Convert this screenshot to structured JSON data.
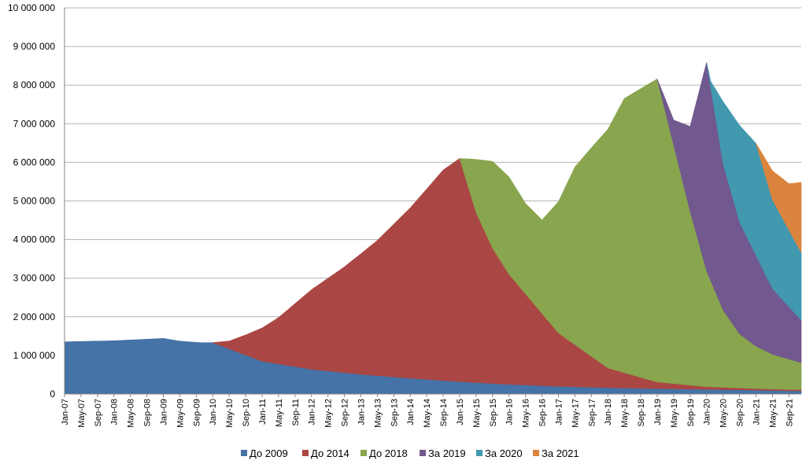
{
  "chart_data": {
    "type": "area",
    "stacked": true,
    "grid": "horizontal",
    "legend_position": "bottom",
    "ylim": [
      0,
      10000000
    ],
    "yticks": [
      0,
      1000000,
      2000000,
      3000000,
      4000000,
      5000000,
      6000000,
      7000000,
      8000000,
      9000000,
      10000000
    ],
    "ytick_labels": [
      "0",
      "1 000 000",
      "2 000 000",
      "3 000 000",
      "4 000 000",
      "5 000 000",
      "6 000 000",
      "7 000 000",
      "8 000 000",
      "9 000 000",
      "10 000 000"
    ],
    "x_range": [
      "2007-01",
      "2021-12"
    ],
    "xtick_labels": [
      "Jan-07",
      "May-07",
      "Sep-07",
      "Jan-08",
      "May-08",
      "Sep-08",
      "Jan-09",
      "May-09",
      "Sep-09",
      "Jan-10",
      "May-10",
      "Sep-10",
      "Jan-11",
      "May-11",
      "Sep-11",
      "Jan-12",
      "May-12",
      "Sep-12",
      "Jan-13",
      "May-13",
      "Sep-13",
      "Jan-14",
      "May-14",
      "Sep-14",
      "Jan-15",
      "May-15",
      "Sep-15",
      "Jan-16",
      "May-16",
      "Sep-16",
      "Jan-17",
      "May-17",
      "Sep-17",
      "Jan-18",
      "May-18",
      "Sep-18",
      "Jan-19",
      "May-19",
      "Sep-19",
      "Jan-20",
      "May-20",
      "Sep-20",
      "Jan-21",
      "May-21",
      "Sep-21"
    ],
    "series": [
      {
        "name": "До 2009",
        "color": "#4572A7",
        "points": [
          [
            "2007-01",
            1350000
          ],
          [
            "2008-01",
            1380000
          ],
          [
            "2009-01",
            1440000
          ],
          [
            "2009-05",
            1370000
          ],
          [
            "2009-10",
            1330000
          ],
          [
            "2010-01",
            1330000
          ],
          [
            "2011-01",
            850000
          ],
          [
            "2012-01",
            640000
          ],
          [
            "2013-01",
            510000
          ],
          [
            "2014-01",
            410000
          ],
          [
            "2015-01",
            320000
          ],
          [
            "2016-01",
            250000
          ],
          [
            "2017-01",
            200000
          ],
          [
            "2018-01",
            165000
          ],
          [
            "2019-01",
            140000
          ],
          [
            "2020-01",
            120000
          ],
          [
            "2021-01",
            100000
          ],
          [
            "2021-12",
            80000
          ]
        ]
      },
      {
        "name": "До 2014",
        "color": "#AA4643",
        "points": [
          [
            "2010-01",
            0
          ],
          [
            "2010-05",
            200000
          ],
          [
            "2010-09",
            520000
          ],
          [
            "2011-01",
            860000
          ],
          [
            "2011-05",
            1200000
          ],
          [
            "2012-01",
            2060000
          ],
          [
            "2012-09",
            2740000
          ],
          [
            "2013-05",
            3500000
          ],
          [
            "2014-01",
            4410000
          ],
          [
            "2014-09",
            5450000
          ],
          [
            "2015-01",
            5780000
          ],
          [
            "2015-05",
            4400000
          ],
          [
            "2015-09",
            3500000
          ],
          [
            "2016-01",
            2850000
          ],
          [
            "2017-01",
            1380000
          ],
          [
            "2018-01",
            510000
          ],
          [
            "2019-01",
            170000
          ],
          [
            "2020-01",
            70000
          ],
          [
            "2021-01",
            40000
          ],
          [
            "2021-12",
            30000
          ]
        ]
      },
      {
        "name": "До 2018",
        "color": "#89A54E",
        "points": [
          [
            "2015-01",
            0
          ],
          [
            "2015-05",
            1380000
          ],
          [
            "2015-09",
            2250000
          ],
          [
            "2016-01",
            2520000
          ],
          [
            "2016-05",
            2340000
          ],
          [
            "2016-09",
            2420000
          ],
          [
            "2017-01",
            3400000
          ],
          [
            "2017-05",
            4600000
          ],
          [
            "2017-09",
            5400000
          ],
          [
            "2018-01",
            6180000
          ],
          [
            "2018-05",
            7100000
          ],
          [
            "2019-01",
            7850000
          ],
          [
            "2019-09",
            4500000
          ],
          [
            "2020-01",
            3000000
          ],
          [
            "2020-05",
            2000000
          ],
          [
            "2020-09",
            1400000
          ],
          [
            "2021-01",
            1100000
          ],
          [
            "2021-05",
            900000
          ],
          [
            "2021-12",
            700000
          ]
        ]
      },
      {
        "name": "За 2019",
        "color": "#71588F",
        "points": [
          [
            "2019-01",
            0
          ],
          [
            "2019-05",
            650000
          ],
          [
            "2019-09",
            2200000
          ],
          [
            "2020-01",
            5400000
          ],
          [
            "2020-05",
            3800000
          ],
          [
            "2020-09",
            2900000
          ],
          [
            "2021-01",
            2350000
          ],
          [
            "2021-05",
            1700000
          ],
          [
            "2021-12",
            1100000
          ]
        ]
      },
      {
        "name": "За 2020",
        "color": "#4198AF",
        "points": [
          [
            "2020-01",
            0
          ],
          [
            "2020-02",
            160000
          ],
          [
            "2020-05",
            1600000
          ],
          [
            "2020-09",
            2500000
          ],
          [
            "2021-01",
            2900000
          ],
          [
            "2021-05",
            2300000
          ],
          [
            "2021-12",
            1750000
          ]
        ]
      },
      {
        "name": "За 2021",
        "color": "#DB843D",
        "points": [
          [
            "2021-01",
            0
          ],
          [
            "2021-05",
            750000
          ],
          [
            "2021-09",
            1200000
          ],
          [
            "2021-12",
            1820000
          ]
        ]
      }
    ]
  }
}
